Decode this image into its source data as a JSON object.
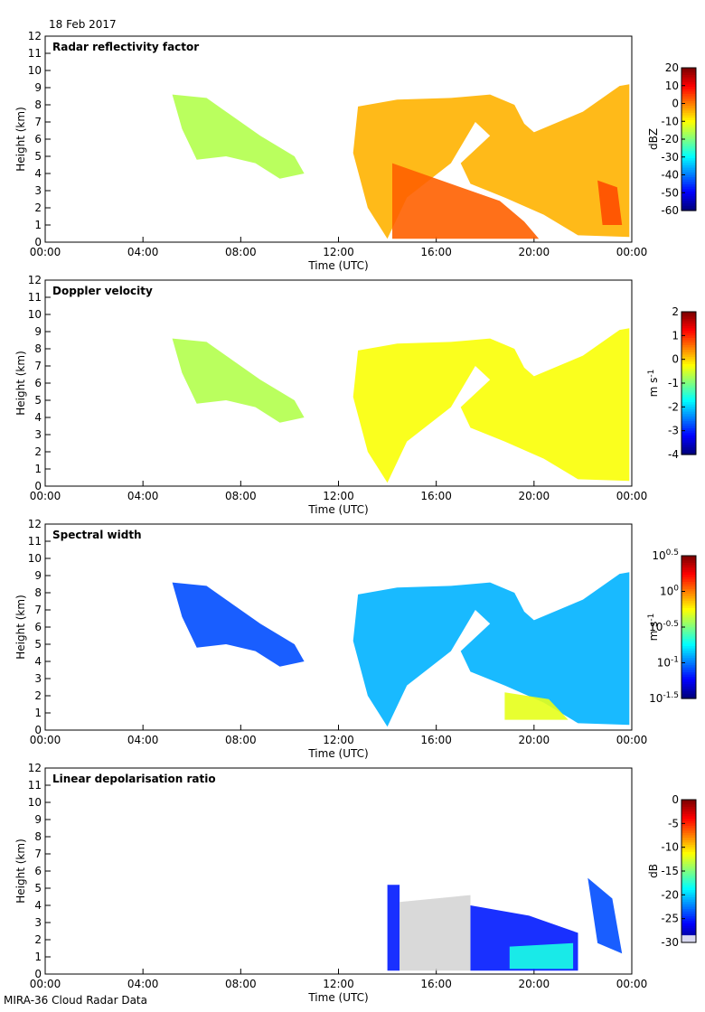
{
  "header": {
    "date": "18 Feb 2017"
  },
  "footer": {
    "caption": "MIRA-36 Cloud Radar Data"
  },
  "chart_data": [
    {
      "type": "heatmap",
      "title": "Radar reflectivity factor",
      "xlabel": "Time (UTC)",
      "ylabel": "Height (km)",
      "xticks": [
        "00:00",
        "04:00",
        "08:00",
        "12:00",
        "16:00",
        "20:00",
        "00:00"
      ],
      "yticks": [
        "0",
        "1",
        "2",
        "3",
        "4",
        "5",
        "6",
        "7",
        "8",
        "9",
        "10",
        "11",
        "12"
      ],
      "ylim": [
        0,
        12
      ],
      "colorbar": {
        "label": "dBZ",
        "ticks": [
          "20",
          "10",
          "0",
          "-10",
          "-20",
          "-30",
          "-40",
          "-50",
          "-60"
        ],
        "scale": "jet"
      }
    },
    {
      "type": "heatmap",
      "title": "Doppler velocity",
      "xlabel": "Time (UTC)",
      "ylabel": "Height (km)",
      "xticks": [
        "00:00",
        "04:00",
        "08:00",
        "12:00",
        "16:00",
        "20:00",
        "00:00"
      ],
      "yticks": [
        "0",
        "1",
        "2",
        "3",
        "4",
        "5",
        "6",
        "7",
        "8",
        "9",
        "10",
        "11",
        "12"
      ],
      "ylim": [
        0,
        12
      ],
      "colorbar": {
        "label": "m s-1",
        "ticks": [
          "2",
          "1",
          "0",
          "-1",
          "-2",
          "-3",
          "-4"
        ],
        "scale": "jet"
      }
    },
    {
      "type": "heatmap",
      "title": "Spectral width",
      "xlabel": "Time (UTC)",
      "ylabel": "Height (km)",
      "xticks": [
        "00:00",
        "04:00",
        "08:00",
        "12:00",
        "16:00",
        "20:00",
        "00:00"
      ],
      "yticks": [
        "0",
        "1",
        "2",
        "3",
        "4",
        "5",
        "6",
        "7",
        "8",
        "9",
        "10",
        "11",
        "12"
      ],
      "ylim": [
        0,
        12
      ],
      "colorbar": {
        "label": "m s-1",
        "ticks": [
          "10^0.5",
          "10^0",
          "10^-0.5",
          "10^-1",
          "10^-1.5"
        ],
        "scale": "jet"
      }
    },
    {
      "type": "heatmap",
      "title": "Linear depolarisation ratio",
      "xlabel": "Time (UTC)",
      "ylabel": "Height (km)",
      "xticks": [
        "00:00",
        "04:00",
        "08:00",
        "12:00",
        "16:00",
        "20:00",
        "00:00"
      ],
      "yticks": [
        "0",
        "1",
        "2",
        "3",
        "4",
        "5",
        "6",
        "7",
        "8",
        "9",
        "10",
        "11",
        "12"
      ],
      "ylim": [
        0,
        12
      ],
      "colorbar": {
        "label": "dB",
        "ticks": [
          "0",
          "-5",
          "-10",
          "-15",
          "-20",
          "-25",
          "-30"
        ],
        "scale": "jet"
      }
    }
  ]
}
